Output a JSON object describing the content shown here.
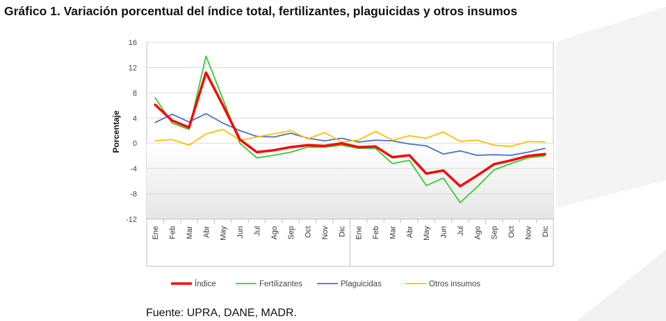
{
  "title": "Gráfico 1. Variación porcentual del índice total, fertilizantes, plaguicidas y otros insumos",
  "source": "Fuente: UPRA, DANE, MADR.",
  "chart_data": {
    "type": "line",
    "ylabel": "Porcentaje",
    "ylim": [
      -12,
      16
    ],
    "yticks": [
      16,
      12,
      8,
      4,
      0,
      -4,
      -8,
      -12
    ],
    "grid": true,
    "legend_position": "bottom",
    "categories": [
      "Ene",
      "Feb",
      "Mar",
      "Abr",
      "May",
      "Jun",
      "Jul",
      "Ago",
      "Sep",
      "Oct",
      "Nov",
      "Dic",
      "Ene",
      "Feb",
      "Mar",
      "Abr",
      "May",
      "Jun",
      "Jul",
      "Ago",
      "Sep",
      "Oct",
      "Nov",
      "Dic"
    ],
    "series": [
      {
        "name": "Índice",
        "color": "#ff0000",
        "values": [
          6.1,
          3.6,
          2.5,
          11.2,
          6.0,
          0.6,
          -1.4,
          -1.1,
          -0.6,
          -0.3,
          -0.4,
          0.0,
          -0.6,
          -0.5,
          -2.2,
          -1.9,
          -4.8,
          -4.3,
          -6.8,
          -5.1,
          -3.3,
          -2.7,
          -2.0,
          -1.7
        ]
      },
      {
        "name": "Fertilizantes",
        "color": "#33cc33",
        "values": [
          7.2,
          3.2,
          2.2,
          13.8,
          7.0,
          0.0,
          -2.3,
          -1.9,
          -1.4,
          -0.6,
          -0.6,
          -0.3,
          -0.8,
          -0.8,
          -3.2,
          -2.7,
          -6.7,
          -5.5,
          -9.4,
          -6.9,
          -4.2,
          -3.2,
          -2.3,
          -2.0
        ]
      },
      {
        "name": "Plaguicidas",
        "color": "#4472c4",
        "values": [
          3.3,
          4.6,
          3.4,
          4.7,
          3.2,
          2.0,
          1.1,
          1.0,
          1.6,
          0.8,
          0.4,
          0.8,
          0.2,
          0.5,
          0.4,
          -0.1,
          -0.4,
          -1.7,
          -1.2,
          -1.9,
          -1.8,
          -1.9,
          -1.4,
          -0.8
        ]
      },
      {
        "name": "Otros insumos",
        "color": "#ffc000",
        "values": [
          0.4,
          0.6,
          -0.3,
          1.5,
          2.2,
          0.5,
          1.0,
          1.5,
          2.0,
          0.7,
          1.7,
          0.2,
          0.5,
          1.9,
          0.5,
          1.2,
          0.8,
          1.8,
          0.3,
          0.5,
          -0.3,
          -0.5,
          0.3,
          0.2
        ]
      }
    ]
  }
}
